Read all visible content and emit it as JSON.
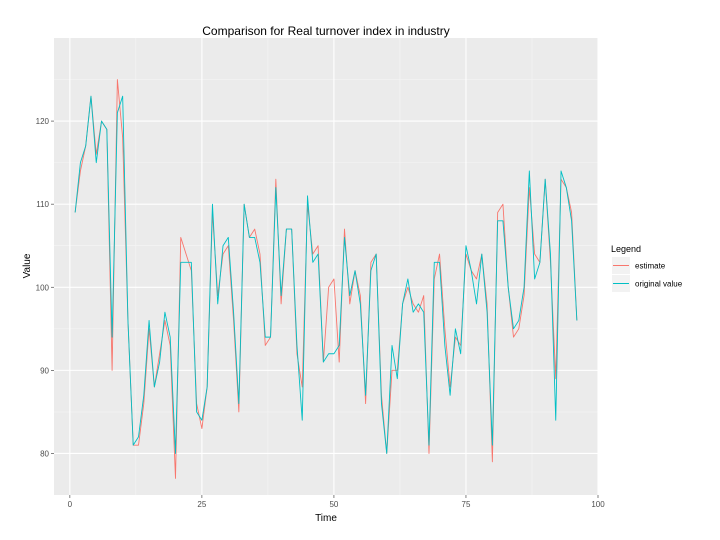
{
  "chart_data": {
    "type": "line",
    "title": "Comparison for Real turnover index in industry",
    "xlabel": "Time",
    "ylabel": "Value",
    "xlim": [
      -3,
      100
    ],
    "ylim": [
      75,
      130
    ],
    "xticks": [
      0,
      25,
      50,
      75,
      100
    ],
    "yticks": [
      80,
      90,
      100,
      110,
      120
    ],
    "grid": true,
    "legend": {
      "title": "Legend",
      "position": "right"
    },
    "x": [
      1,
      2,
      3,
      4,
      5,
      6,
      7,
      8,
      9,
      10,
      11,
      12,
      13,
      14,
      15,
      16,
      17,
      18,
      19,
      20,
      21,
      22,
      23,
      24,
      25,
      26,
      27,
      28,
      29,
      30,
      31,
      32,
      33,
      34,
      35,
      36,
      37,
      38,
      39,
      40,
      41,
      42,
      43,
      44,
      45,
      46,
      47,
      48,
      49,
      50,
      51,
      52,
      53,
      54,
      55,
      56,
      57,
      58,
      59,
      60,
      61,
      62,
      63,
      64,
      65,
      66,
      67,
      68,
      69,
      70,
      71,
      72,
      73,
      74,
      75,
      76,
      77,
      78,
      79,
      80,
      81,
      82,
      83,
      84,
      85,
      86,
      87,
      88,
      89,
      90,
      91,
      92,
      93,
      94,
      95,
      96
    ],
    "series": [
      {
        "name": "estimate",
        "color": "#F8766D",
        "values": [
          109,
          114,
          117,
          123,
          116,
          120,
          119,
          90,
          125,
          118,
          96,
          81,
          81,
          86,
          95,
          88,
          92,
          96,
          93,
          77,
          106,
          104,
          102,
          86,
          83,
          88,
          109,
          99,
          104,
          105,
          96,
          85,
          110,
          106,
          107,
          104,
          93,
          94,
          113,
          98,
          107,
          107,
          92,
          88,
          110,
          104,
          105,
          91,
          100,
          101,
          91,
          107,
          98,
          102,
          99,
          86,
          103,
          104,
          87,
          80,
          90,
          90,
          98,
          100,
          98,
          97,
          99,
          80,
          101,
          104,
          95,
          88,
          94,
          93,
          104,
          102,
          101,
          104,
          98,
          79,
          109,
          110,
          100,
          94,
          95,
          99,
          112,
          104,
          103,
          113,
          103,
          89,
          113,
          112,
          109,
          96
        ]
      },
      {
        "name": "original value",
        "color": "#00BFC4",
        "values": [
          109,
          115,
          117,
          123,
          115,
          120,
          119,
          94,
          121,
          123,
          96,
          81,
          82,
          87,
          96,
          88,
          91,
          97,
          94,
          80,
          103,
          103,
          103,
          85,
          84,
          88,
          110,
          98,
          105,
          106,
          97,
          86,
          110,
          106,
          106,
          103,
          94,
          94,
          112,
          99,
          107,
          107,
          93,
          84,
          111,
          103,
          104,
          91,
          92,
          92,
          93,
          106,
          99,
          102,
          98,
          87,
          102,
          104,
          86,
          80,
          93,
          89,
          98,
          101,
          97,
          98,
          97,
          81,
          103,
          103,
          93,
          87,
          95,
          92,
          105,
          102,
          98,
          104,
          97,
          81,
          108,
          108,
          100,
          95,
          96,
          100,
          114,
          101,
          103,
          113,
          104,
          84,
          114,
          112,
          108,
          96
        ]
      }
    ]
  }
}
